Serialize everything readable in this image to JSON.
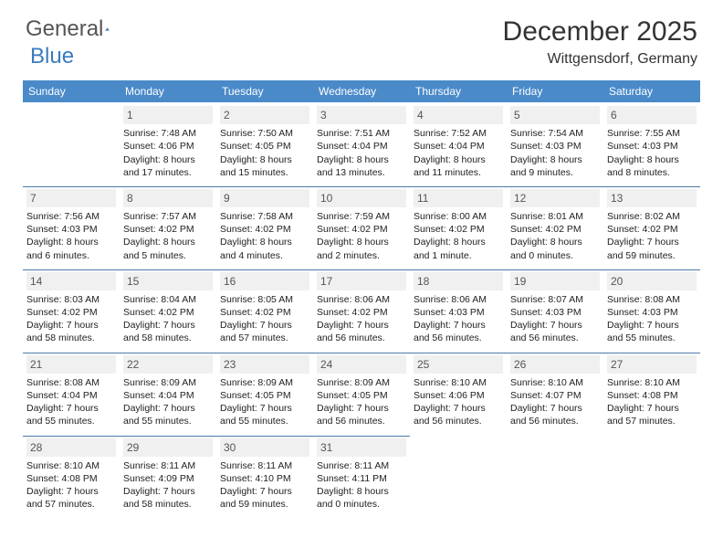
{
  "logo": {
    "text1": "General",
    "text2": "Blue"
  },
  "title": "December 2025",
  "location": "Wittgensdorf, Germany",
  "colors": {
    "header_bg": "#4a8ac9",
    "header_fg": "#ffffff",
    "day_divider": "#4a7aa8",
    "daynum_bg": "#f0f0f0",
    "logo_gray": "#555555",
    "logo_blue": "#3b7bbf"
  },
  "weekdays": [
    "Sunday",
    "Monday",
    "Tuesday",
    "Wednesday",
    "Thursday",
    "Friday",
    "Saturday"
  ],
  "grid": [
    [
      null,
      {
        "n": "1",
        "sunrise": "7:48 AM",
        "sunset": "4:06 PM",
        "day_h": "8",
        "day_m": "17 minutes"
      },
      {
        "n": "2",
        "sunrise": "7:50 AM",
        "sunset": "4:05 PM",
        "day_h": "8",
        "day_m": "15 minutes"
      },
      {
        "n": "3",
        "sunrise": "7:51 AM",
        "sunset": "4:04 PM",
        "day_h": "8",
        "day_m": "13 minutes"
      },
      {
        "n": "4",
        "sunrise": "7:52 AM",
        "sunset": "4:04 PM",
        "day_h": "8",
        "day_m": "11 minutes"
      },
      {
        "n": "5",
        "sunrise": "7:54 AM",
        "sunset": "4:03 PM",
        "day_h": "8",
        "day_m": "9 minutes"
      },
      {
        "n": "6",
        "sunrise": "7:55 AM",
        "sunset": "4:03 PM",
        "day_h": "8",
        "day_m": "8 minutes"
      }
    ],
    [
      {
        "n": "7",
        "sunrise": "7:56 AM",
        "sunset": "4:03 PM",
        "day_h": "8",
        "day_m": "6 minutes"
      },
      {
        "n": "8",
        "sunrise": "7:57 AM",
        "sunset": "4:02 PM",
        "day_h": "8",
        "day_m": "5 minutes"
      },
      {
        "n": "9",
        "sunrise": "7:58 AM",
        "sunset": "4:02 PM",
        "day_h": "8",
        "day_m": "4 minutes"
      },
      {
        "n": "10",
        "sunrise": "7:59 AM",
        "sunset": "4:02 PM",
        "day_h": "8",
        "day_m": "2 minutes"
      },
      {
        "n": "11",
        "sunrise": "8:00 AM",
        "sunset": "4:02 PM",
        "day_h": "8",
        "day_m": "1 minute"
      },
      {
        "n": "12",
        "sunrise": "8:01 AM",
        "sunset": "4:02 PM",
        "day_h": "8",
        "day_m": "0 minutes"
      },
      {
        "n": "13",
        "sunrise": "8:02 AM",
        "sunset": "4:02 PM",
        "day_h": "7",
        "day_m": "59 minutes"
      }
    ],
    [
      {
        "n": "14",
        "sunrise": "8:03 AM",
        "sunset": "4:02 PM",
        "day_h": "7",
        "day_m": "58 minutes"
      },
      {
        "n": "15",
        "sunrise": "8:04 AM",
        "sunset": "4:02 PM",
        "day_h": "7",
        "day_m": "58 minutes"
      },
      {
        "n": "16",
        "sunrise": "8:05 AM",
        "sunset": "4:02 PM",
        "day_h": "7",
        "day_m": "57 minutes"
      },
      {
        "n": "17",
        "sunrise": "8:06 AM",
        "sunset": "4:02 PM",
        "day_h": "7",
        "day_m": "56 minutes"
      },
      {
        "n": "18",
        "sunrise": "8:06 AM",
        "sunset": "4:03 PM",
        "day_h": "7",
        "day_m": "56 minutes"
      },
      {
        "n": "19",
        "sunrise": "8:07 AM",
        "sunset": "4:03 PM",
        "day_h": "7",
        "day_m": "56 minutes"
      },
      {
        "n": "20",
        "sunrise": "8:08 AM",
        "sunset": "4:03 PM",
        "day_h": "7",
        "day_m": "55 minutes"
      }
    ],
    [
      {
        "n": "21",
        "sunrise": "8:08 AM",
        "sunset": "4:04 PM",
        "day_h": "7",
        "day_m": "55 minutes"
      },
      {
        "n": "22",
        "sunrise": "8:09 AM",
        "sunset": "4:04 PM",
        "day_h": "7",
        "day_m": "55 minutes"
      },
      {
        "n": "23",
        "sunrise": "8:09 AM",
        "sunset": "4:05 PM",
        "day_h": "7",
        "day_m": "55 minutes"
      },
      {
        "n": "24",
        "sunrise": "8:09 AM",
        "sunset": "4:05 PM",
        "day_h": "7",
        "day_m": "56 minutes"
      },
      {
        "n": "25",
        "sunrise": "8:10 AM",
        "sunset": "4:06 PM",
        "day_h": "7",
        "day_m": "56 minutes"
      },
      {
        "n": "26",
        "sunrise": "8:10 AM",
        "sunset": "4:07 PM",
        "day_h": "7",
        "day_m": "56 minutes"
      },
      {
        "n": "27",
        "sunrise": "8:10 AM",
        "sunset": "4:08 PM",
        "day_h": "7",
        "day_m": "57 minutes"
      }
    ],
    [
      {
        "n": "28",
        "sunrise": "8:10 AM",
        "sunset": "4:08 PM",
        "day_h": "7",
        "day_m": "57 minutes"
      },
      {
        "n": "29",
        "sunrise": "8:11 AM",
        "sunset": "4:09 PM",
        "day_h": "7",
        "day_m": "58 minutes"
      },
      {
        "n": "30",
        "sunrise": "8:11 AM",
        "sunset": "4:10 PM",
        "day_h": "7",
        "day_m": "59 minutes"
      },
      {
        "n": "31",
        "sunrise": "8:11 AM",
        "sunset": "4:11 PM",
        "day_h": "8",
        "day_m": "0 minutes"
      },
      null,
      null,
      null
    ]
  ],
  "labels": {
    "sunrise": "Sunrise:",
    "sunset": "Sunset:",
    "daylight": "Daylight:",
    "hours": "hours",
    "and": "and"
  }
}
